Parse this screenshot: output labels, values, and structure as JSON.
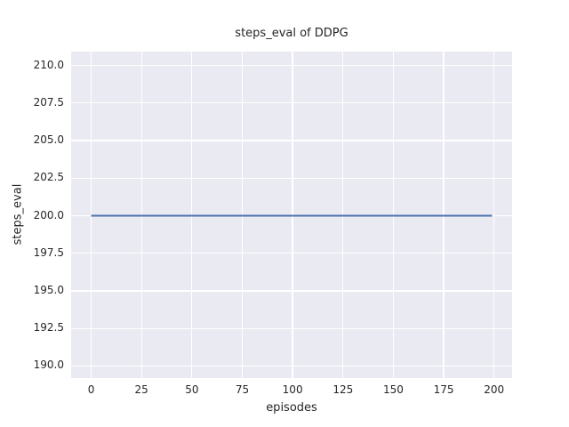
{
  "chart_data": {
    "type": "line",
    "title": "steps_eval of DDPG",
    "xlabel": "episodes",
    "ylabel": "steps_eval",
    "grid": true,
    "legend": false,
    "plot_background": "#eaeaf2",
    "grid_color": "#ffffff",
    "text_color": "#262626",
    "xlim": [
      -9.95,
      208.95
    ],
    "ylim": [
      189.2,
      210.92
    ],
    "xticks": [
      {
        "v": 0,
        "label": "0"
      },
      {
        "v": 25,
        "label": "25"
      },
      {
        "v": 50,
        "label": "50"
      },
      {
        "v": 75,
        "label": "75"
      },
      {
        "v": 100,
        "label": "100"
      },
      {
        "v": 125,
        "label": "125"
      },
      {
        "v": 150,
        "label": "150"
      },
      {
        "v": 175,
        "label": "175"
      },
      {
        "v": 200,
        "label": "200"
      }
    ],
    "yticks": [
      {
        "v": 190,
        "label": "190.0"
      },
      {
        "v": 192.5,
        "label": "192.5"
      },
      {
        "v": 195,
        "label": "195.0"
      },
      {
        "v": 197.5,
        "label": "197.5"
      },
      {
        "v": 200,
        "label": "200.0"
      },
      {
        "v": 202.5,
        "label": "202.5"
      },
      {
        "v": 205,
        "label": "205.0"
      },
      {
        "v": 207.5,
        "label": "207.5"
      },
      {
        "v": 210,
        "label": "210.0"
      }
    ],
    "series": [
      {
        "name": "steps_eval",
        "color": "#4c72b0",
        "line_width": 2,
        "x": [
          0,
          199
        ],
        "y": [
          200,
          200
        ],
        "note": "constant line at steps_eval = 200 for all episodes 0-199"
      }
    ]
  }
}
